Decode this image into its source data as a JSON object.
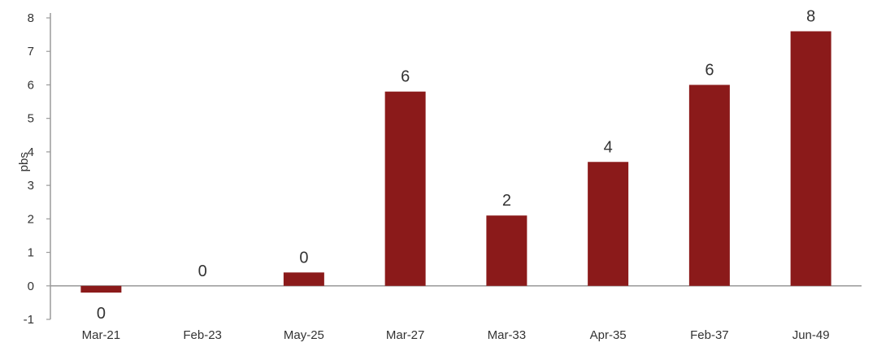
{
  "chart_data": {
    "type": "bar",
    "ylabel": "pbs",
    "ylim": [
      -1,
      8
    ],
    "yticks": [
      "-1",
      "0",
      "1",
      "2",
      "3",
      "4",
      "5",
      "6",
      "7",
      "8"
    ],
    "grid": false,
    "categories": [
      "Mar-21",
      "Feb-23",
      "May-25",
      "Mar-27",
      "Mar-33",
      "Apr-35",
      "Feb-37",
      "Jun-49"
    ],
    "values": [
      -0.2,
      0.0,
      0.4,
      5.8,
      2.1,
      3.7,
      6.0,
      7.6
    ],
    "data_labels": [
      "0",
      "0",
      "0",
      "6",
      "2",
      "4",
      "6",
      "8"
    ],
    "bar_color": "#8b1a1a"
  }
}
